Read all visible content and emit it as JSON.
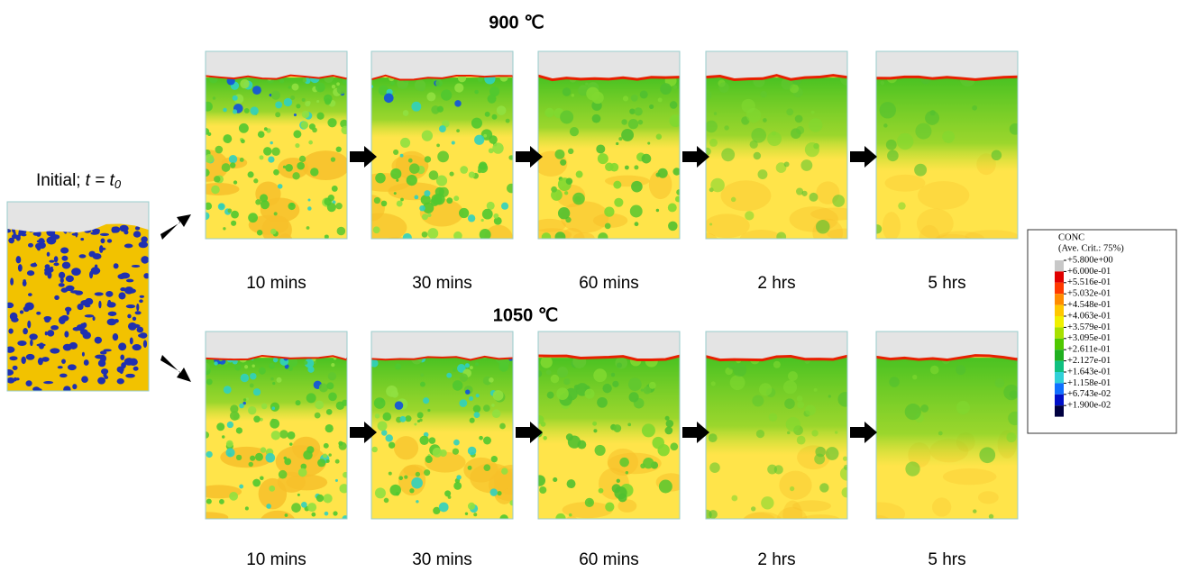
{
  "initial": {
    "label": "Initial;",
    "variable": "t = t",
    "subscript": "0"
  },
  "rows": [
    {
      "title": "900 ℃",
      "times": [
        "10 mins",
        "30 mins",
        "60 mins",
        "2 hrs",
        "5 hrs"
      ]
    },
    {
      "title": "1050 ℃",
      "times": [
        "10 mins",
        "30 mins",
        "60 mins",
        "2 hrs",
        "5 hrs"
      ]
    }
  ],
  "legend": {
    "title": "CONC",
    "subtitle": "(Ave. Crit.: 75%)",
    "entries": [
      {
        "label": "+5.800e+00",
        "color": "#c8c8c8"
      },
      {
        "label": "+6.000e-01",
        "color": "#e00000"
      },
      {
        "label": "+5.516e-01",
        "color": "#ff3a00"
      },
      {
        "label": "+5.032e-01",
        "color": "#ff8c00"
      },
      {
        "label": "+4.548e-01",
        "color": "#ffc800"
      },
      {
        "label": "+4.063e-01",
        "color": "#f0f000"
      },
      {
        "label": "+3.579e-01",
        "color": "#a8e000"
      },
      {
        "label": "+3.095e-01",
        "color": "#50c800"
      },
      {
        "label": "+2.611e-01",
        "color": "#20b020"
      },
      {
        "label": "+2.127e-01",
        "color": "#10c080"
      },
      {
        "label": "+1.643e-01",
        "color": "#30d0d8"
      },
      {
        "label": "+1.158e-01",
        "color": "#1070ff"
      },
      {
        "label": "+6.743e-02",
        "color": "#0010c8"
      },
      {
        "label": "+1.900e-02",
        "color": "#000040"
      },
      {
        "label": "",
        "color": "#000000"
      }
    ]
  }
}
